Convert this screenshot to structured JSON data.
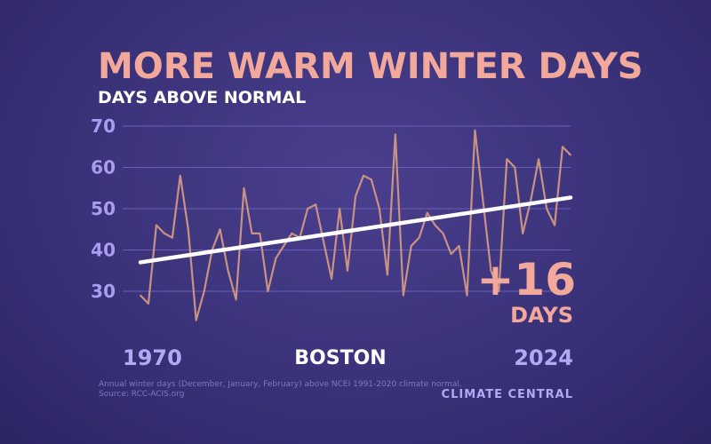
{
  "chart_data": {
    "type": "line",
    "title": "MORE WARM WINTER DAYS",
    "subtitle": "DAYS ABOVE NORMAL",
    "location": "BOSTON",
    "x_start_label": "1970",
    "x_end_label": "2024",
    "ylim": [
      20,
      70
    ],
    "yticks": [
      "70",
      "60",
      "50",
      "40",
      "30"
    ],
    "grid": true,
    "x": [
      1970,
      1971,
      1972,
      1973,
      1974,
      1975,
      1976,
      1977,
      1978,
      1979,
      1980,
      1981,
      1982,
      1983,
      1984,
      1985,
      1986,
      1987,
      1988,
      1989,
      1990,
      1991,
      1992,
      1993,
      1994,
      1995,
      1996,
      1997,
      1998,
      1999,
      2000,
      2001,
      2002,
      2003,
      2004,
      2005,
      2006,
      2007,
      2008,
      2009,
      2010,
      2011,
      2012,
      2013,
      2014,
      2015,
      2016,
      2017,
      2018,
      2019,
      2020,
      2021,
      2022,
      2023,
      2024
    ],
    "series": [
      {
        "values": [
          29,
          27,
          46,
          44,
          43,
          58,
          45,
          23,
          30,
          40,
          45,
          35,
          28,
          55,
          44,
          44,
          30,
          38,
          41,
          44,
          43,
          50,
          51,
          42,
          33,
          50,
          35,
          53,
          58,
          57,
          50,
          34,
          68,
          29,
          41,
          43,
          49,
          46,
          44,
          39,
          41,
          29,
          69,
          52,
          35,
          30,
          62,
          60,
          44,
          52,
          62,
          50,
          46,
          65,
          63
        ],
        "color": "#c99283"
      }
    ],
    "trend": {
      "start": 37,
      "end": 52.7,
      "color": "#ffffff"
    },
    "callout": {
      "value": "+16",
      "unit": "DAYS"
    },
    "footnote_line1": "Annual winter days (December, January, February) above NCEI 1991-2020 climate normal.",
    "footnote_line2": "Source: RCC-ACIS.org",
    "brand": "CLIMATE CENTRAL"
  }
}
